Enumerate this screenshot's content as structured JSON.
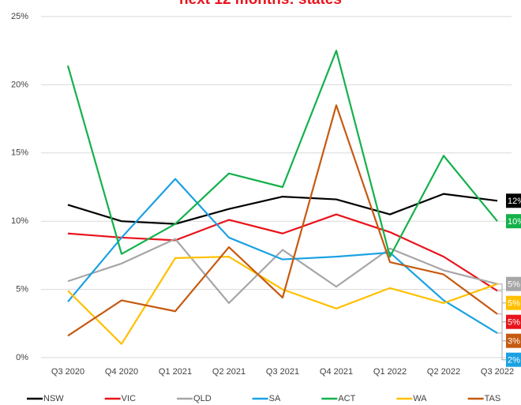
{
  "chart_data": {
    "type": "line",
    "title": "next 12 months: states",
    "categories": [
      "Q3 2020",
      "Q4 2020",
      "Q1 2021",
      "Q2 2021",
      "Q3 2021",
      "Q4 2021",
      "Q1 2022",
      "Q2 2022",
      "Q3 2022"
    ],
    "ylim": [
      0,
      25
    ],
    "yticks": [
      {
        "value": 0,
        "label": "0%"
      },
      {
        "value": 5,
        "label": "5%"
      },
      {
        "value": 10,
        "label": "10%"
      },
      {
        "value": 15,
        "label": "15%"
      },
      {
        "value": 20,
        "label": "20%"
      },
      {
        "value": 25,
        "label": "25%"
      }
    ],
    "grid": true,
    "legend": "bottom",
    "series": [
      {
        "name": "NSW",
        "color": "#000000",
        "values": [
          11.2,
          10.0,
          9.8,
          10.9,
          11.8,
          11.6,
          10.5,
          12.0,
          11.5
        ],
        "end_label": "12%"
      },
      {
        "name": "VIC",
        "color": "#e8141c",
        "values": [
          9.1,
          8.8,
          8.6,
          10.1,
          9.1,
          10.5,
          9.2,
          7.4,
          4.9
        ],
        "end_label": "5%"
      },
      {
        "name": "QLD",
        "color": "#a6a6a6",
        "values": [
          5.6,
          6.9,
          8.7,
          4.0,
          7.9,
          5.2,
          8.0,
          6.4,
          5.4
        ],
        "end_label": "5%"
      },
      {
        "name": "SA",
        "color": "#1ba1e2",
        "values": [
          4.1,
          8.8,
          13.1,
          8.8,
          7.2,
          7.4,
          7.7,
          4.2,
          1.8
        ],
        "end_label": "2%"
      },
      {
        "name": "ACT",
        "color": "#14b14b",
        "values": [
          21.4,
          7.6,
          9.8,
          13.5,
          12.5,
          22.5,
          7.4,
          14.8,
          10.0
        ],
        "end_label": "10%"
      },
      {
        "name": "WA",
        "color": "#ffc000",
        "values": [
          4.9,
          1.0,
          7.3,
          7.4,
          5.0,
          3.6,
          5.1,
          4.0,
          5.4
        ],
        "end_label": "5%"
      },
      {
        "name": "TAS",
        "color": "#c55a11",
        "values": [
          1.6,
          4.2,
          3.4,
          8.1,
          4.4,
          18.5,
          7.0,
          6.1,
          3.2
        ],
        "end_label": "3%"
      }
    ]
  }
}
